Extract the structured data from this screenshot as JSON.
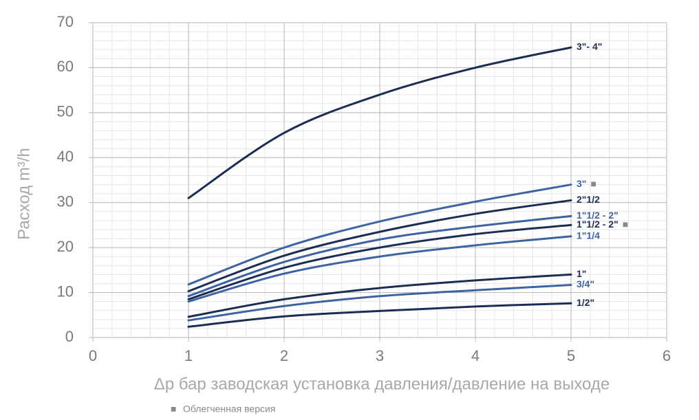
{
  "chart_data": {
    "type": "line",
    "xlabel": "Δp бар заводская установка давления/давление на выходе",
    "ylabel": "Расход m³/h",
    "x": [
      1,
      2,
      3,
      4,
      5
    ],
    "series": [
      {
        "name": "3\"- 4\"",
        "color": "#1b2d52",
        "values": [
          31,
          45.5,
          54,
          60,
          64.5
        ]
      },
      {
        "name": "3\"",
        "color": "#3d63a3",
        "lite": true,
        "values": [
          11.8,
          20,
          25.8,
          30.2,
          34
        ]
      },
      {
        "name": "2\"1/2",
        "color": "#1b2d52",
        "values": [
          10.3,
          18.2,
          23.5,
          27.5,
          30.5
        ]
      },
      {
        "name": "1\"1/2 - 2\"",
        "color": "#3d63a3",
        "values": [
          9.2,
          16.8,
          21.8,
          24.7,
          27
        ]
      },
      {
        "name": "1\"1/2 - 2\"",
        "color": "#1b2d52",
        "lite": true,
        "values": [
          8.5,
          15.5,
          20,
          23,
          25
        ]
      },
      {
        "name": "1\"1/4",
        "color": "#3d63a3",
        "values": [
          8,
          14.2,
          18,
          20.5,
          22.5
        ]
      },
      {
        "name": "1\"",
        "color": "#1b2d52",
        "values": [
          4.6,
          8.5,
          11,
          12.7,
          14
        ]
      },
      {
        "name": "3/4\"",
        "color": "#3d63a3",
        "values": [
          3.8,
          7,
          9.2,
          10.5,
          11.7
        ]
      },
      {
        "name": "1/2\"",
        "color": "#1b2d52",
        "values": [
          2.4,
          4.7,
          5.9,
          6.9,
          7.6
        ]
      }
    ],
    "xlim": [
      0,
      6
    ],
    "ylim": [
      0,
      70
    ],
    "xticks": [
      0,
      1,
      2,
      3,
      4,
      5,
      6
    ],
    "yticks": [
      0,
      10,
      20,
      30,
      40,
      50,
      60,
      70
    ],
    "xminorticks": [
      0.2,
      0.4,
      0.6,
      0.8,
      1.2,
      1.4,
      1.6,
      1.8,
      2.2,
      2.4,
      2.6,
      2.8,
      3.2,
      3.4,
      3.6,
      3.8,
      4.2,
      4.4,
      4.6,
      4.8,
      5.2,
      5.4,
      5.6,
      5.8
    ],
    "yminorticks": [
      2,
      4,
      6,
      8,
      12,
      14,
      16,
      18,
      22,
      24,
      26,
      28,
      32,
      34,
      36,
      38,
      42,
      44,
      46,
      48,
      52,
      54,
      56,
      58,
      62,
      64,
      66,
      68
    ],
    "grid": true,
    "note_marker": "■",
    "note": "Облегченная версия"
  }
}
